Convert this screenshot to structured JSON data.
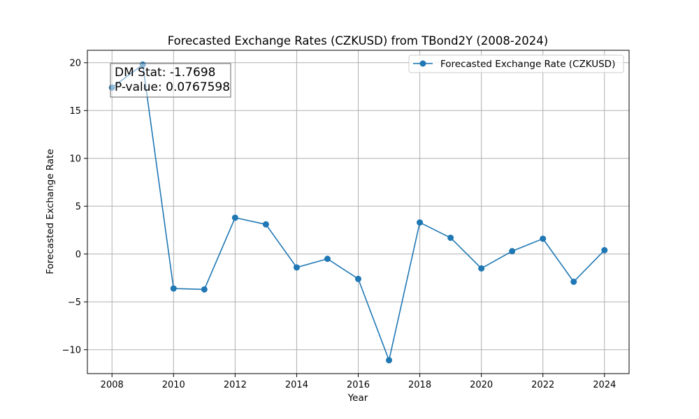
{
  "chart_data": {
    "type": "line",
    "title": "Forecasted Exchange Rates (CZKUSD) from TBond2Y (2008-2024)",
    "xlabel": "Year",
    "ylabel": "Forecasted Exchange Rate",
    "xlim": [
      2007.2,
      2024.8
    ],
    "ylim": [
      -12.5,
      21.3
    ],
    "xticks": [
      2008,
      2010,
      2012,
      2014,
      2016,
      2018,
      2020,
      2022,
      2024
    ],
    "yticks": [
      -10,
      -5,
      0,
      5,
      10,
      15,
      20
    ],
    "grid": true,
    "legend_position": "top-right",
    "series": [
      {
        "name": "Forecasted Exchange Rate (CZKUSD)",
        "color": "#1f77b4",
        "marker": "circle",
        "x": [
          2008,
          2009,
          2010,
          2011,
          2012,
          2013,
          2014,
          2015,
          2016,
          2017,
          2018,
          2019,
          2020,
          2021,
          2022,
          2023,
          2024
        ],
        "y": [
          17.4,
          19.8,
          -3.6,
          -3.7,
          3.8,
          3.1,
          -1.4,
          -0.5,
          -2.6,
          -11.1,
          3.3,
          1.7,
          -1.5,
          0.3,
          1.6,
          -2.9,
          0.4
        ]
      }
    ],
    "annotation": {
      "lines": [
        "DM Stat: -1.7698",
        "P-value: 0.0767598"
      ],
      "position": "top-left"
    }
  }
}
